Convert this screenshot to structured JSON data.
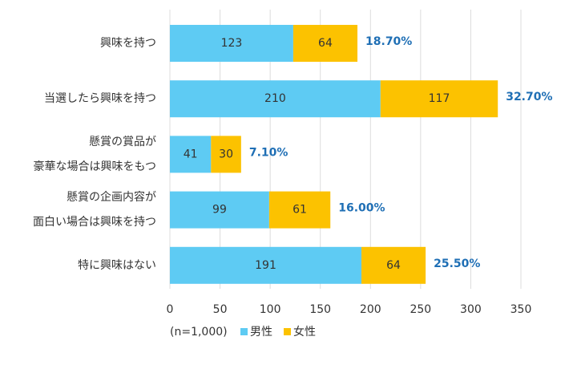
{
  "chart_data": {
    "type": "stacked-barh",
    "categories": [
      [
        "興味を持つ"
      ],
      [
        "当選したら興味を持つ"
      ],
      [
        "懸賞の賞品が",
        "豪華な場合は興味をもつ"
      ],
      [
        "懸賞の企画内容が",
        "面白い場合は興味を持つ"
      ],
      [
        "特に興味はない"
      ]
    ],
    "series": [
      {
        "name": "男性",
        "color": "#5ecbf3",
        "values": [
          123,
          210,
          41,
          99,
          191
        ]
      },
      {
        "name": "女性",
        "color": "#fcc200",
        "values": [
          64,
          117,
          30,
          61,
          64
        ]
      }
    ],
    "share_labels": [
      "18.70%",
      "32.70%",
      "7.10%",
      "16.00%",
      "25.50%"
    ],
    "note": "(n=1,000)",
    "xlim": [
      0,
      350
    ],
    "xticks": [
      0,
      50,
      100,
      150,
      200,
      250,
      300,
      350
    ],
    "grid": true,
    "legend": "bottom"
  }
}
